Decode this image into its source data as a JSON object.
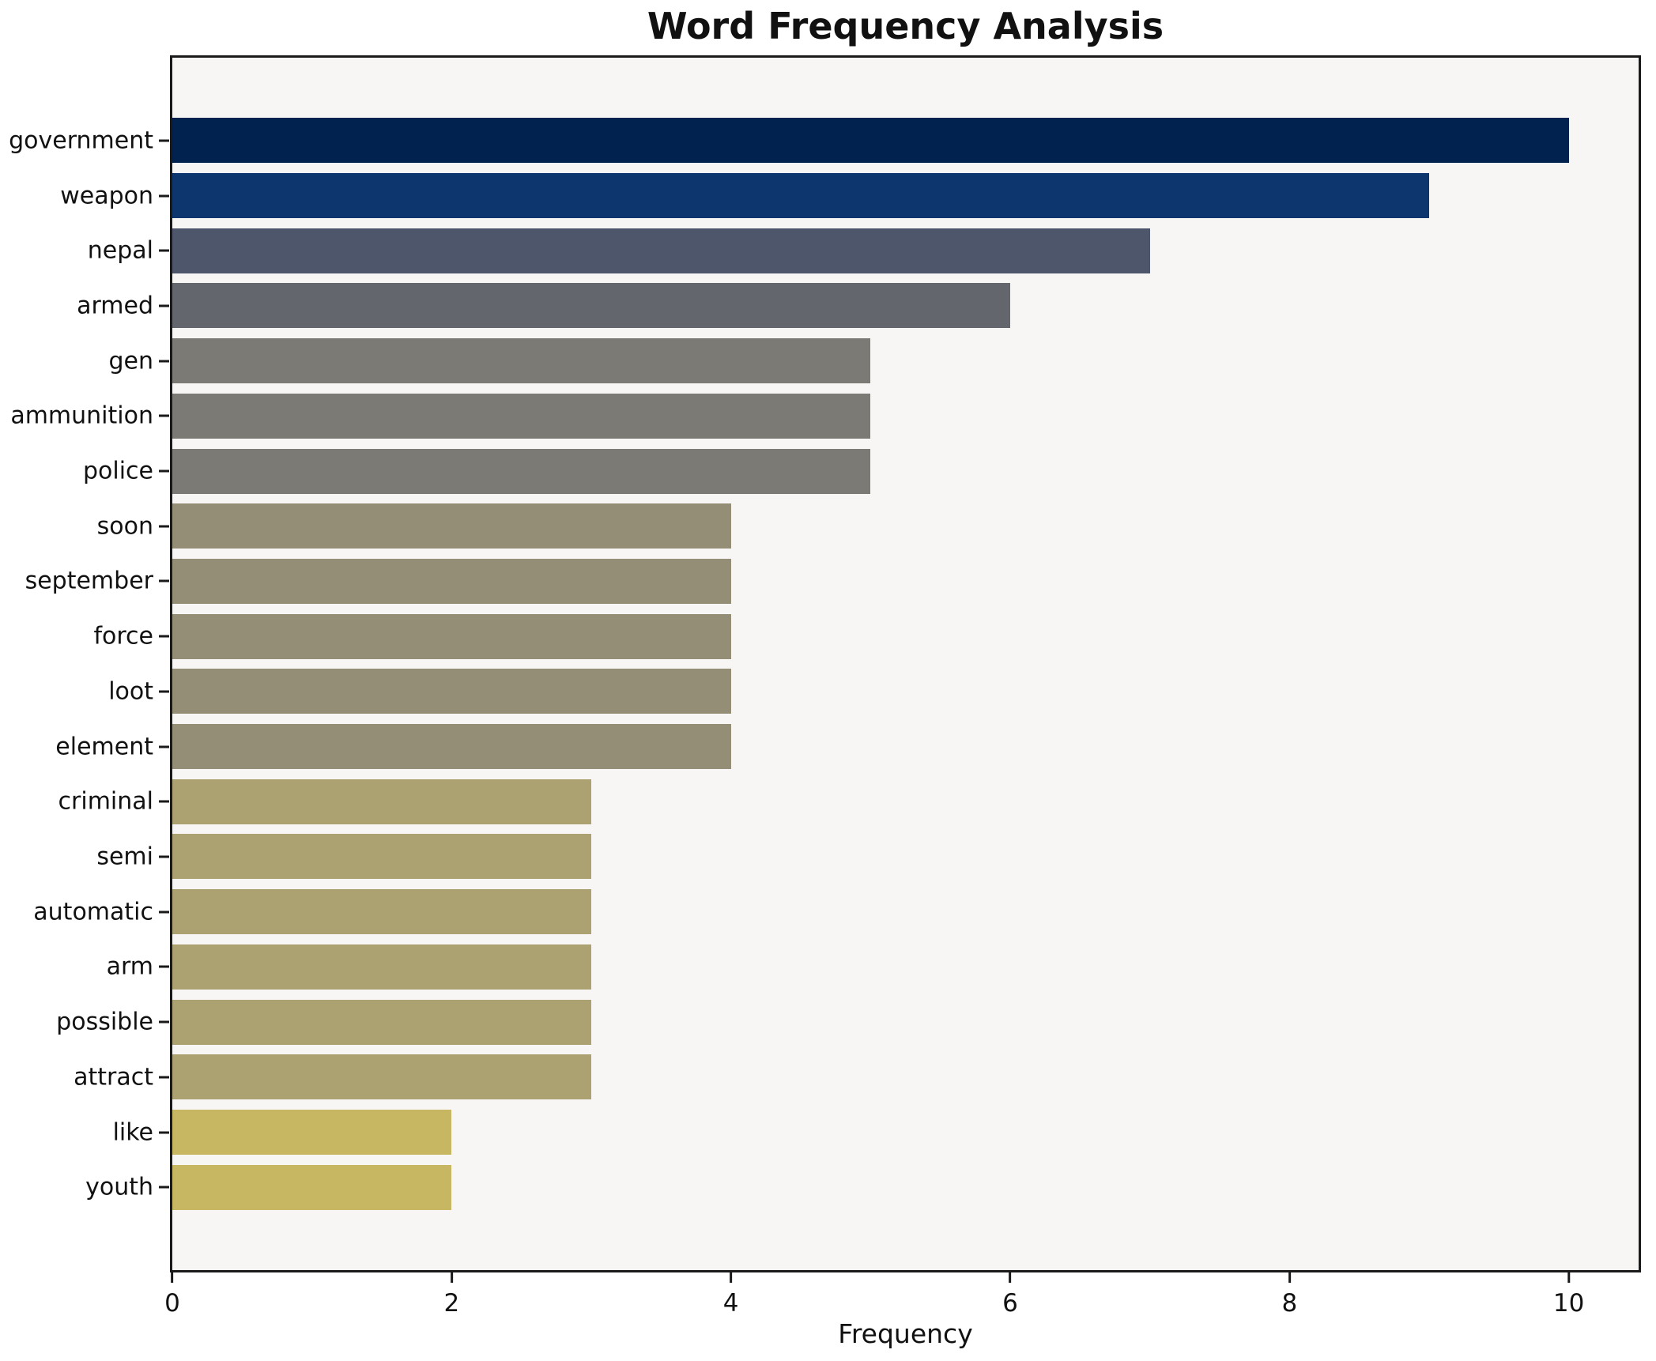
{
  "chart_data": {
    "type": "bar",
    "orientation": "horizontal",
    "title": "Word Frequency Analysis",
    "xlabel": "Frequency",
    "ylabel": "",
    "categories": [
      "government",
      "weapon",
      "nepal",
      "armed",
      "gen",
      "ammunition",
      "police",
      "soon",
      "september",
      "force",
      "loot",
      "element",
      "criminal",
      "semi",
      "automatic",
      "arm",
      "possible",
      "attract",
      "like",
      "youth"
    ],
    "values": [
      10,
      9,
      7,
      6,
      5,
      5,
      5,
      4,
      4,
      4,
      4,
      4,
      3,
      3,
      3,
      3,
      3,
      3,
      2,
      2
    ],
    "bar_colors": [
      "#01224e",
      "#0d366f",
      "#4e566b",
      "#64666d",
      "#7b7a74",
      "#7b7a74",
      "#7b7a74",
      "#948e76",
      "#948e76",
      "#948e76",
      "#948e76",
      "#948e76",
      "#aca171",
      "#aca171",
      "#aca171",
      "#aca171",
      "#aca171",
      "#aca171",
      "#c7b763",
      "#c7b763"
    ],
    "xlim": [
      0,
      10.5
    ],
    "xticks": [
      0,
      2,
      4,
      6,
      8,
      10
    ],
    "grid": false,
    "legend_position": "none",
    "plot_bg": "#f7f6f4",
    "fig_bg": "#ffffff",
    "spine_color": "#1a1a1a",
    "text_color": "#111111"
  }
}
